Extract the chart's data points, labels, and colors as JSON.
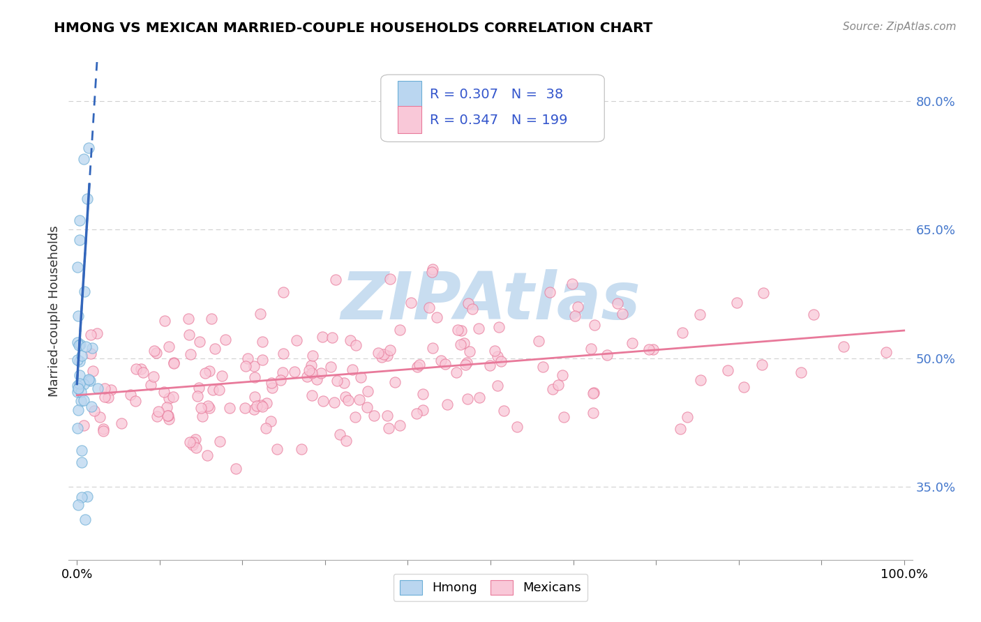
{
  "title": "HMONG VS MEXICAN MARRIED-COUPLE HOUSEHOLDS CORRELATION CHART",
  "source": "Source: ZipAtlas.com",
  "ylabel": "Married-couple Households",
  "background_color": "#ffffff",
  "plot_bg_color": "#ffffff",
  "grid_color": "#d0d0d0",
  "xmin": -0.01,
  "xmax": 1.01,
  "ymin": 0.265,
  "ymax": 0.845,
  "right_yticks": [
    0.35,
    0.5,
    0.65,
    0.8
  ],
  "right_yticklabels": [
    "35.0%",
    "50.0%",
    "65.0%",
    "80.0%"
  ],
  "xtick_positions": [
    0.0,
    0.1,
    0.2,
    0.3,
    0.4,
    0.5,
    0.6,
    0.7,
    0.8,
    0.9,
    1.0
  ],
  "xtick_labels_show": [
    "0.0%",
    "",
    "",
    "",
    "",
    "",
    "",
    "",
    "",
    "",
    "100.0%"
  ],
  "hmong_color": "#bad6f0",
  "hmong_edge_color": "#6baed6",
  "mexican_color": "#f9c8d8",
  "mexican_edge_color": "#e8799a",
  "hmong_R": 0.307,
  "hmong_N": 38,
  "mexican_R": 0.347,
  "mexican_N": 199,
  "legend_color": "#3355cc",
  "hmong_line_color": "#3366bb",
  "mexican_line_color": "#e8799a",
  "watermark": "ZIPAtlas",
  "watermark_color": "#c8ddf0",
  "dot_size": 120,
  "dot_alpha": 0.75,
  "hmong_seed": 77,
  "mexican_seed": 42
}
